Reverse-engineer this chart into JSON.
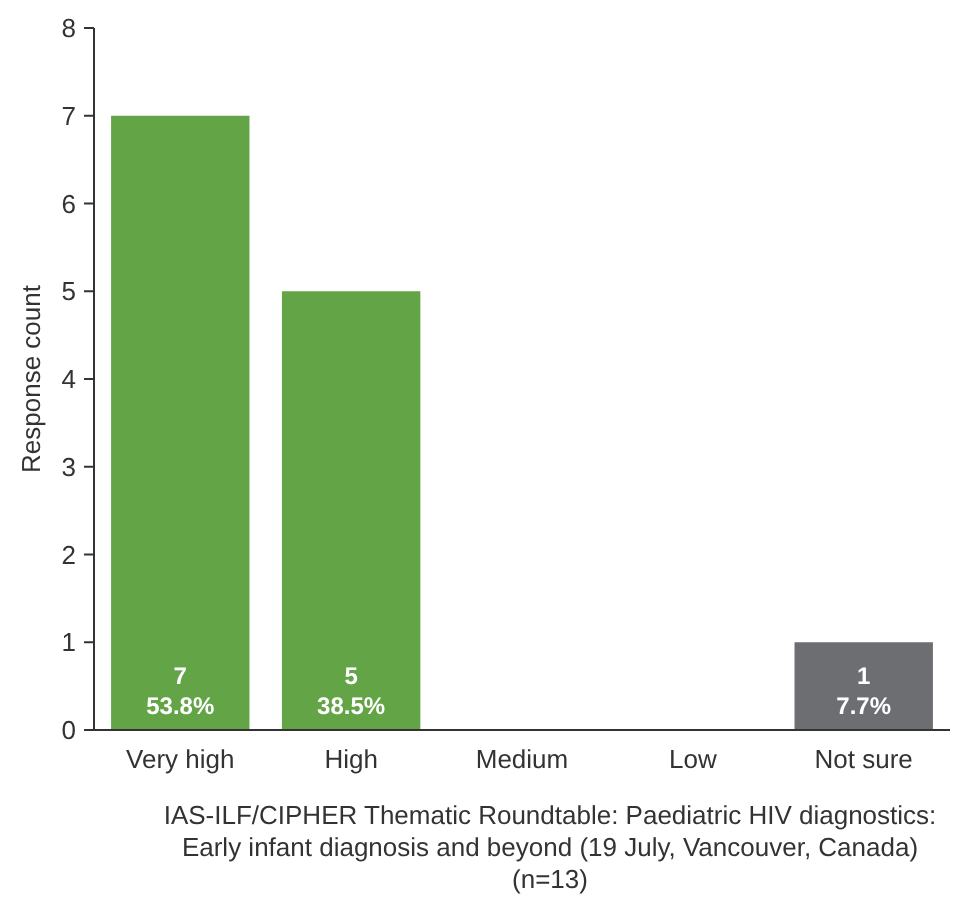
{
  "chart_data": {
    "type": "bar",
    "ylabel": "Response count",
    "categories": [
      "Very high",
      "High",
      "Medium",
      "Low",
      "Not sure"
    ],
    "values": [
      7,
      5,
      0,
      0,
      1
    ],
    "colors": [
      "#62a446",
      "#62a446",
      "#62a446",
      "#62a446",
      "#6d6e71"
    ],
    "value_labels": [
      "7\n53.8%",
      "5\n38.5%",
      null,
      null,
      "1\n7.7%"
    ],
    "ylim": [
      0,
      8
    ],
    "yticks": [
      0,
      1,
      2,
      3,
      4,
      5,
      6,
      7,
      8
    ],
    "grid": false,
    "annotations": [
      "IAS-ILF/CIPHER Thematic Roundtable: Paediatric HIV diagnostics:",
      "Early infant diagnosis and beyond (19 July, Vancouver, Canada)",
      "(n=13)"
    ]
  }
}
